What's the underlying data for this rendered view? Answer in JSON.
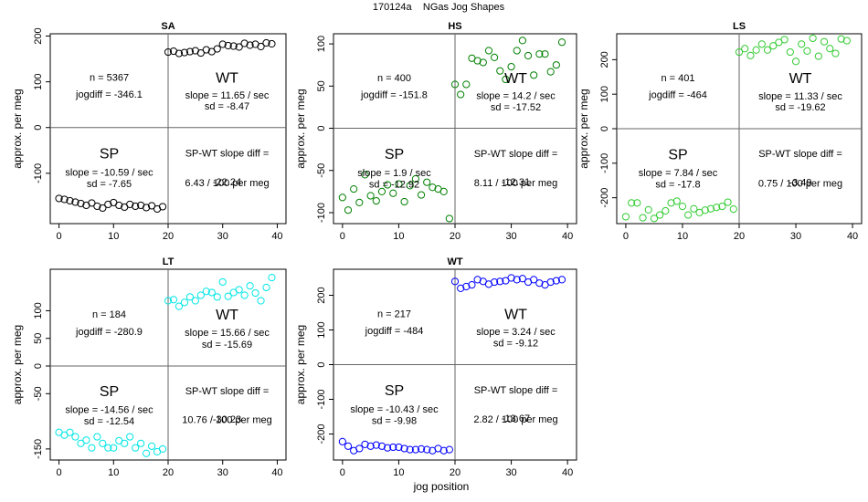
{
  "figure": {
    "title": "170124a    NGas Jog Shapes",
    "xlabel": "jog position"
  },
  "chart_data": [
    {
      "type": "scatter",
      "title": "SA",
      "ylabel": "approx. per meg",
      "xlim": [
        -1.6,
        41.6
      ],
      "ylim": [
        -210,
        205
      ],
      "xticks": [
        0,
        10,
        20,
        30,
        40
      ],
      "yticks": [
        -100,
        0,
        100,
        200
      ],
      "split_x": 20,
      "split_y": 0,
      "marker_color": "#000000",
      "x": [
        0,
        1,
        2,
        3,
        4,
        5,
        6,
        7,
        8,
        9,
        10,
        11,
        12,
        13,
        14,
        15,
        16,
        17,
        18,
        19,
        20,
        21,
        22,
        23,
        24,
        25,
        26,
        27,
        28,
        29,
        30,
        31,
        32,
        33,
        34,
        35,
        36,
        37,
        38,
        39
      ],
      "y": [
        -155,
        -157,
        -160,
        -163,
        -166,
        -170,
        -165,
        -172,
        -176,
        -168,
        -164,
        -170,
        -174,
        -168,
        -172,
        -170,
        -175,
        -171,
        -178,
        -173,
        165,
        167,
        162,
        164,
        166,
        168,
        163,
        170,
        166,
        172,
        182,
        179,
        178,
        176,
        184,
        180,
        182,
        177,
        185,
        183
      ],
      "n_text": "n = 5367",
      "jogdiff_text": "jogdiff = -346.1",
      "wt_label": "WT",
      "wt_slope": "slope = 11.65 / sec",
      "wt_sd": "sd = -8.47",
      "sp_label": "SP",
      "sp_slope": "slope = -10.59 / sec",
      "sp_sd": "sd = -7.65",
      "diff_label": "SP-WT slope diff =",
      "diff_value": "-22.24",
      "diff_permeg": "6.43 / 100 per meg"
    },
    {
      "type": "scatter",
      "title": "HS",
      "ylabel": "approx. per meg",
      "xlim": [
        -1.6,
        41.6
      ],
      "ylim": [
        -113,
        112
      ],
      "xticks": [
        0,
        10,
        20,
        30,
        40
      ],
      "yticks": [
        -100,
        -50,
        0,
        50,
        100
      ],
      "split_x": 20,
      "split_y": 0,
      "marker_color": "#008000",
      "x": [
        0,
        1,
        2,
        3,
        4,
        5,
        6,
        7,
        8,
        9,
        10,
        11,
        12,
        13,
        14,
        15,
        16,
        17,
        18,
        19,
        20,
        21,
        22,
        23,
        24,
        25,
        26,
        27,
        28,
        29,
        30,
        31,
        32,
        33,
        34,
        35,
        36,
        37,
        38,
        39
      ],
      "y": [
        -82,
        -97,
        -72,
        -88,
        -55,
        -80,
        -86,
        -75,
        -67,
        -77,
        -66,
        -87,
        -68,
        -60,
        -79,
        -64,
        -70,
        -72,
        -75,
        -107,
        52,
        40,
        52,
        83,
        80,
        78,
        92,
        84,
        68,
        58,
        73,
        92,
        104,
        86,
        63,
        88,
        88,
        67,
        75,
        102
      ],
      "n_text": "n = 400",
      "jogdiff_text": "jogdiff = -151.8",
      "wt_label": "WT",
      "wt_slope": "slope = 14.2 / sec",
      "wt_sd": "sd = -17.52",
      "sp_label": "SP",
      "sp_slope": "slope = 1.9 / sec",
      "sp_sd": "sd = -12.92",
      "diff_label": "SP-WT slope diff =",
      "diff_value": "-12.31",
      "diff_permeg": "8.11 / 100 per meg"
    },
    {
      "type": "scatter",
      "title": "LS",
      "ylabel": "approx. per meg",
      "xlim": [
        -1.6,
        41.6
      ],
      "ylim": [
        -275,
        275
      ],
      "xticks": [
        0,
        10,
        20,
        30,
        40
      ],
      "yticks": [
        -200,
        -100,
        0,
        100,
        200
      ],
      "split_x": 20,
      "split_y": 0,
      "marker_color": "#33cc33",
      "x": [
        0,
        1,
        2,
        3,
        4,
        5,
        6,
        7,
        8,
        9,
        10,
        11,
        12,
        13,
        14,
        15,
        16,
        17,
        18,
        19,
        20,
        21,
        22,
        23,
        24,
        25,
        26,
        27,
        28,
        29,
        30,
        31,
        32,
        33,
        34,
        35,
        36,
        37,
        38,
        39
      ],
      "y": [
        -255,
        -215,
        -215,
        -258,
        -235,
        -260,
        -250,
        -238,
        -215,
        -210,
        -225,
        -250,
        -232,
        -243,
        -236,
        -232,
        -228,
        -225,
        -213,
        -233,
        222,
        232,
        212,
        228,
        245,
        228,
        240,
        250,
        258,
        222,
        195,
        245,
        225,
        262,
        210,
        252,
        232,
        218,
        260,
        255
      ],
      "n_text": "n = 401",
      "jogdiff_text": "jogdiff = -464",
      "wt_label": "WT",
      "wt_slope": "slope = 11.33 / sec",
      "wt_sd": "sd = -19.62",
      "sp_label": "SP",
      "sp_slope": "slope = 7.84 / sec",
      "sp_sd": "sd = -17.8",
      "diff_label": "SP-WT slope diff =",
      "diff_value": "-3.49",
      "diff_permeg": "0.75 / 100 per meg"
    },
    {
      "type": "scatter",
      "title": "LT",
      "ylabel": "approx. per meg",
      "xlim": [
        -1.6,
        41.6
      ],
      "ylim": [
        -170,
        175
      ],
      "xticks": [
        0,
        10,
        20,
        30,
        40
      ],
      "yticks": [
        -150,
        -50,
        0,
        50,
        100
      ],
      "split_x": 20,
      "split_y": 0,
      "marker_color": "#00e6e6",
      "x": [
        0,
        1,
        2,
        3,
        4,
        5,
        6,
        7,
        8,
        9,
        10,
        11,
        12,
        13,
        14,
        15,
        16,
        17,
        18,
        19,
        20,
        21,
        22,
        23,
        24,
        25,
        26,
        27,
        28,
        29,
        30,
        31,
        32,
        33,
        34,
        35,
        36,
        37,
        38,
        39
      ],
      "y": [
        -120,
        -125,
        -120,
        -128,
        -140,
        -134,
        -148,
        -128,
        -140,
        -148,
        -148,
        -135,
        -140,
        -128,
        -148,
        -140,
        -158,
        -145,
        -155,
        -150,
        118,
        120,
        108,
        115,
        125,
        118,
        128,
        135,
        133,
        125,
        152,
        126,
        133,
        138,
        128,
        145,
        132,
        118,
        142,
        160
      ],
      "n_text": "n = 184",
      "jogdiff_text": "jogdiff = -280.9",
      "wt_label": "WT",
      "wt_slope": "slope = 15.66 / sec",
      "wt_sd": "sd = -15.69",
      "sp_label": "SP",
      "sp_slope": "slope = -14.56 / sec",
      "sp_sd": "sd = -12.54",
      "diff_label": "SP-WT slope diff =",
      "diff_value": "-30.23",
      "diff_permeg": "10.76 / 100 per meg"
    },
    {
      "type": "scatter",
      "title": "WT",
      "ylabel": "approx. per meg",
      "xlim": [
        -1.6,
        41.6
      ],
      "ylim": [
        -275,
        275
      ],
      "xticks": [
        0,
        10,
        20,
        30,
        40
      ],
      "yticks": [
        -200,
        -100,
        0,
        100,
        200
      ],
      "split_x": 20,
      "split_y": 0,
      "marker_color": "#0000ff",
      "x": [
        0,
        1,
        2,
        3,
        4,
        5,
        6,
        7,
        8,
        9,
        10,
        11,
        12,
        13,
        14,
        15,
        16,
        17,
        18,
        19,
        20,
        21,
        22,
        23,
        24,
        25,
        26,
        27,
        28,
        29,
        30,
        31,
        32,
        33,
        34,
        35,
        36,
        37,
        38,
        39
      ],
      "y": [
        -222,
        -235,
        -248,
        -242,
        -230,
        -235,
        -232,
        -235,
        -240,
        -238,
        -238,
        -242,
        -245,
        -245,
        -243,
        -245,
        -248,
        -242,
        -248,
        -245,
        240,
        220,
        225,
        230,
        245,
        240,
        232,
        238,
        240,
        242,
        250,
        245,
        248,
        238,
        245,
        235,
        230,
        238,
        242,
        245
      ],
      "n_text": "n = 217",
      "jogdiff_text": "jogdiff = -484",
      "wt_label": "WT",
      "wt_slope": "slope = 3.24 / sec",
      "wt_sd": "sd = -9.12",
      "sp_label": "SP",
      "sp_slope": "slope = -10.43 / sec",
      "sp_sd": "sd = -9.98",
      "diff_label": "SP-WT slope diff =",
      "diff_value": "-13.67",
      "diff_permeg": "2.82 / 100 per meg"
    }
  ]
}
